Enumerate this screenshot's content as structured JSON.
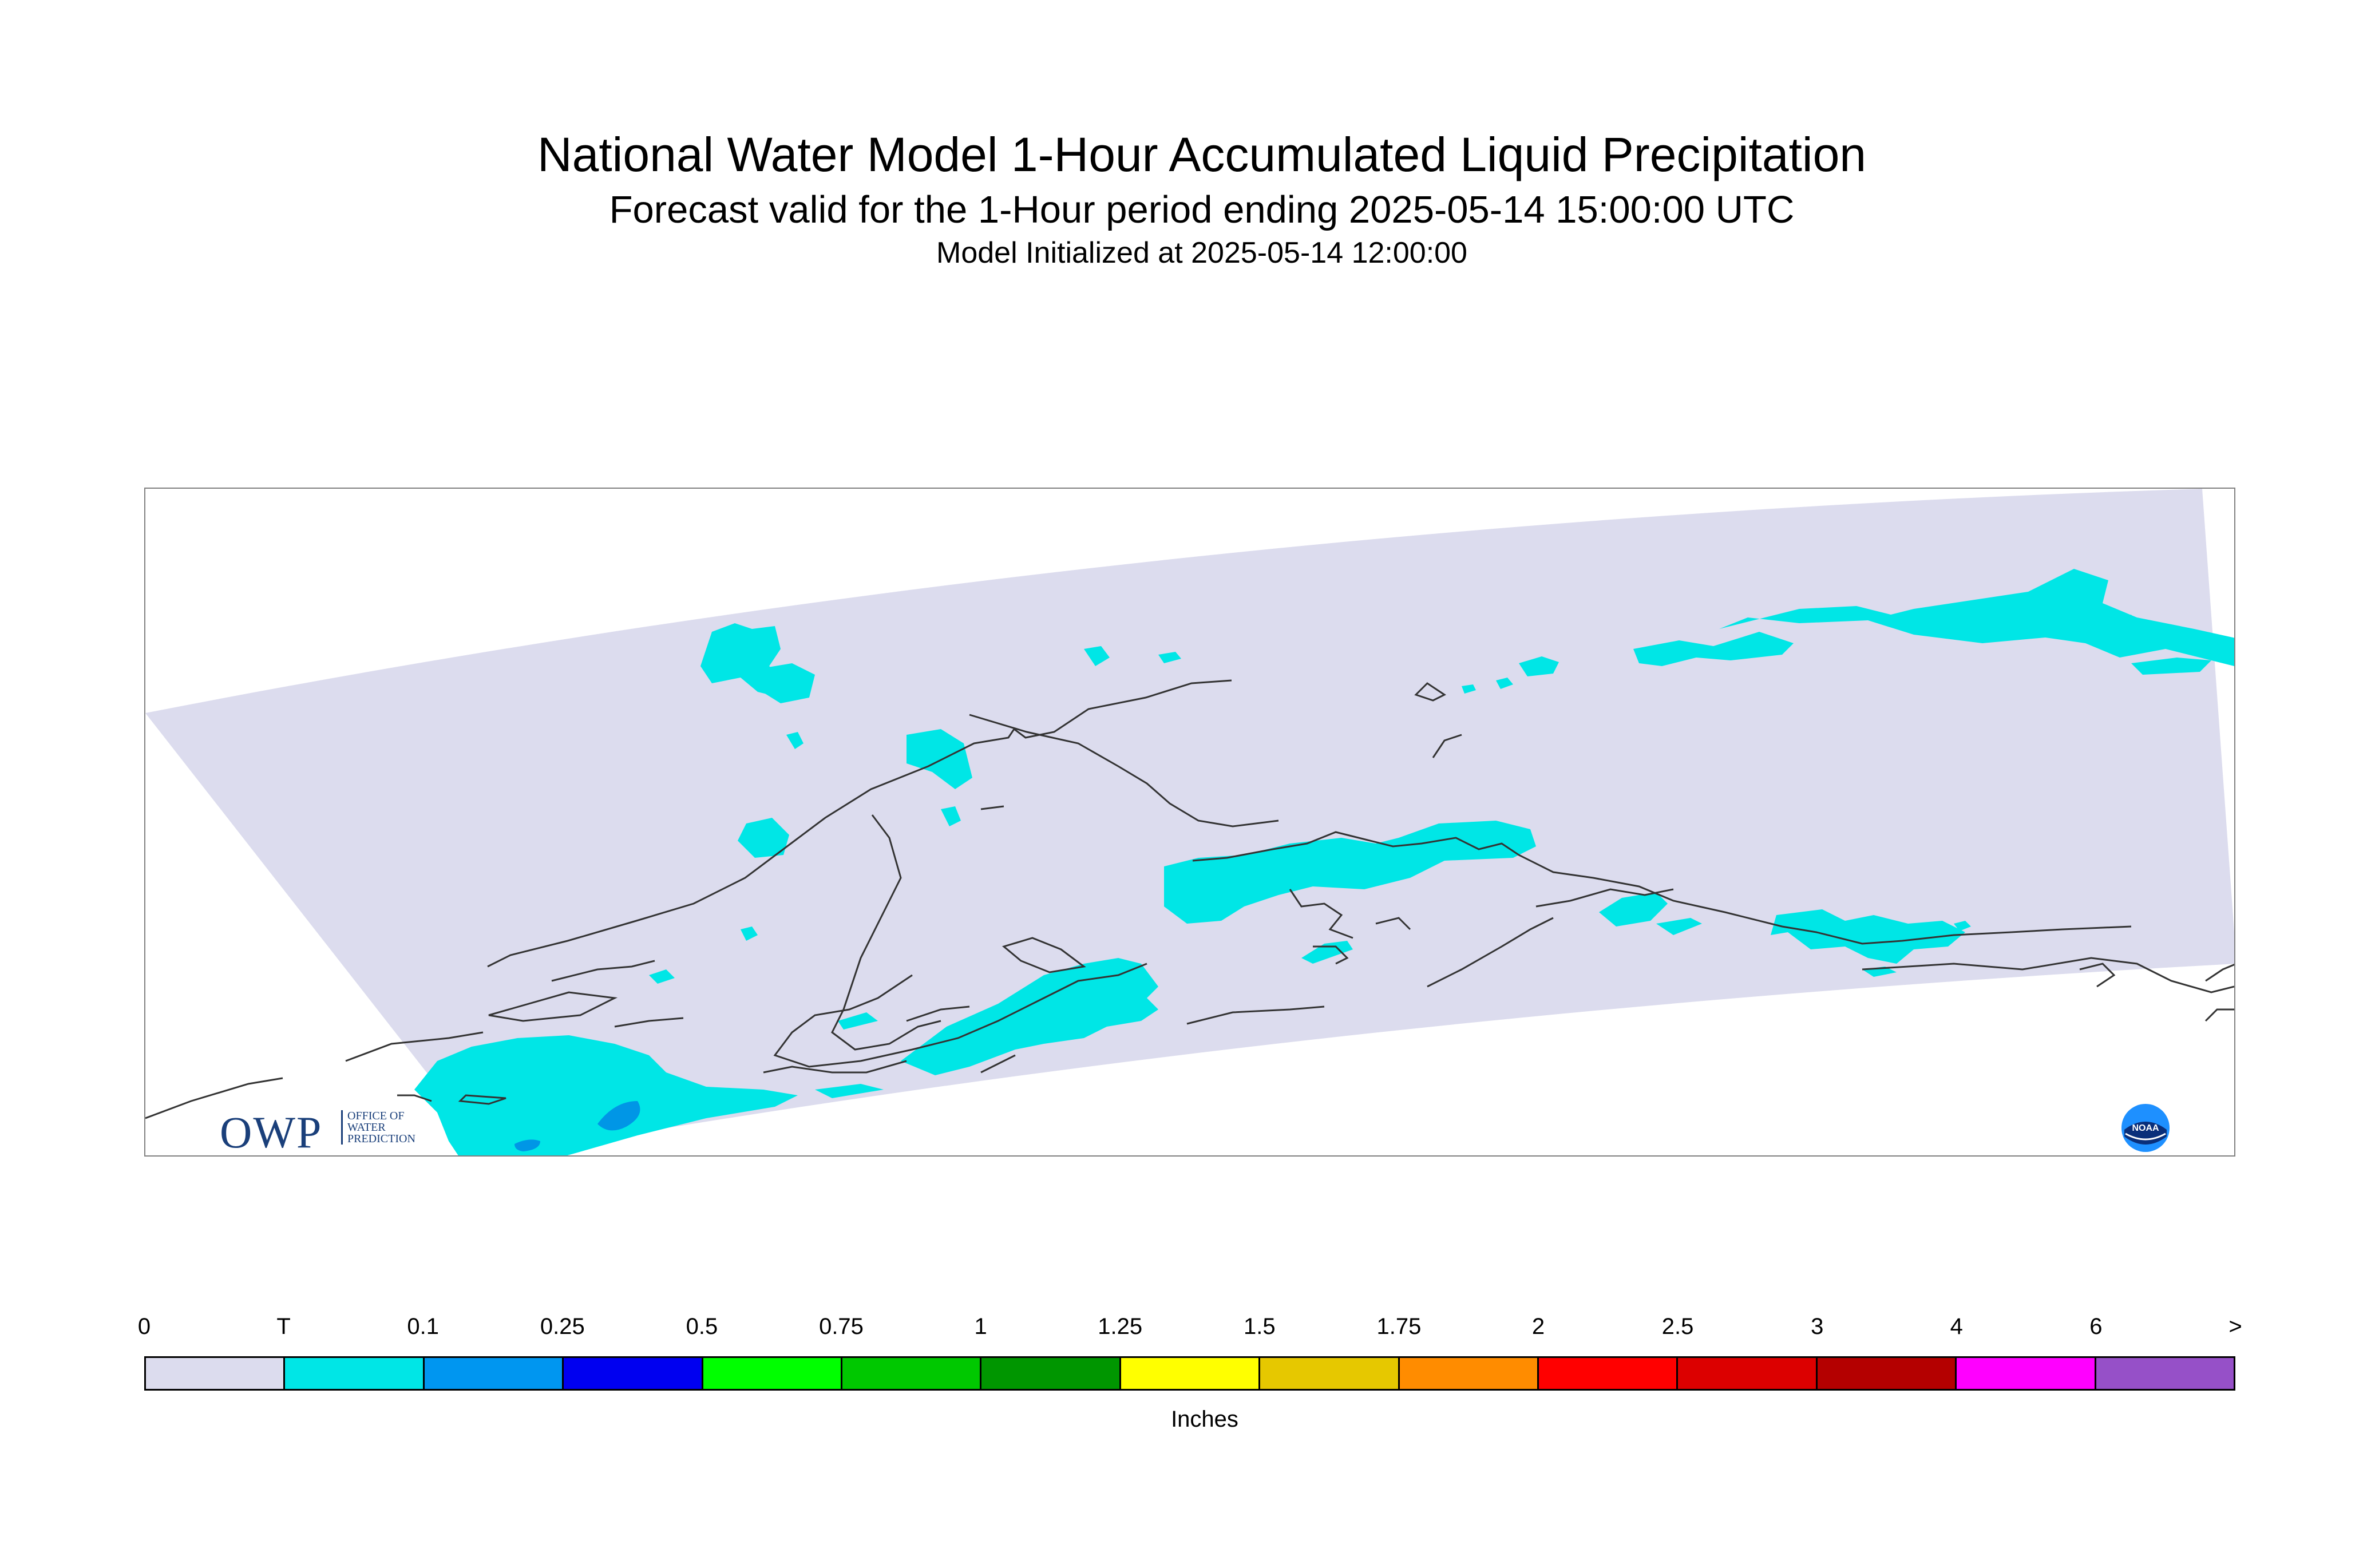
{
  "header": {
    "title": "National Water Model 1-Hour Accumulated Liquid Precipitation",
    "subtitle": "Forecast valid for the 1-Hour period ending 2025-05-14 15:00:00 UTC",
    "init": "Model Initialized at 2025-05-14 12:00:00"
  },
  "logos": {
    "owp_big": "OWP",
    "owp_small": [
      "OFFICE OF",
      "WATER",
      "PREDICTION"
    ],
    "noaa_text": "NOAA"
  },
  "map": {
    "region": "Alaska",
    "domain_color": "#dcdcee",
    "precip_color": "#00e6e6",
    "precip_heavier_color": "#0096e6",
    "coastline_color": "#333333"
  },
  "legend": {
    "ticks": [
      "0",
      "T",
      "0.1",
      "0.25",
      "0.5",
      "0.75",
      "1",
      "1.25",
      "1.5",
      "1.75",
      "2",
      "2.5",
      "3",
      "4",
      "6",
      ">"
    ],
    "colors": [
      "#dcdcee",
      "#00e6e6",
      "#0096f0",
      "#0000f0",
      "#00ff00",
      "#00c800",
      "#009600",
      "#ffff00",
      "#e6c800",
      "#ff8c00",
      "#ff0000",
      "#dc0000",
      "#b40000",
      "#ff00ff",
      "#9650c8"
    ],
    "units": "Inches"
  }
}
